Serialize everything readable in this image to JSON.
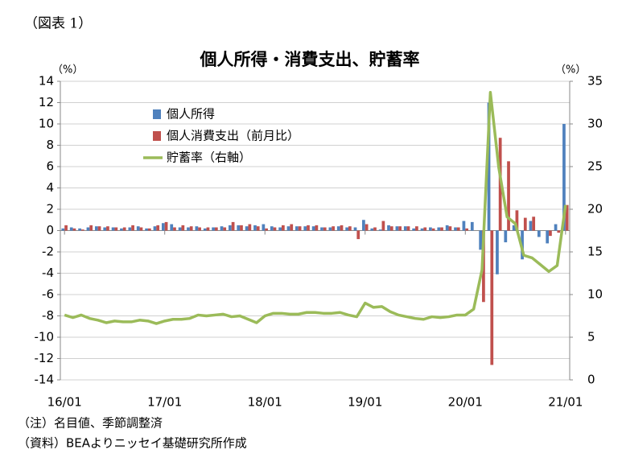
{
  "chart_data": {
    "type": "bar_line",
    "figure_label": "（図表 1）",
    "title": "個人所得・消費支出、貯蓄率",
    "y_unit": "（%）",
    "y2_unit": "（%）",
    "notes": [
      "（注）名目値、季節調整済",
      "（資料）BEAよりニッセイ基礎研究所作成"
    ],
    "categories": [
      "16/01",
      null,
      null,
      null,
      null,
      null,
      null,
      null,
      null,
      null,
      null,
      null,
      "17/01",
      null,
      null,
      null,
      null,
      null,
      null,
      null,
      null,
      null,
      null,
      null,
      "18/01",
      null,
      null,
      null,
      null,
      null,
      null,
      null,
      null,
      null,
      null,
      null,
      "19/01",
      null,
      null,
      null,
      null,
      null,
      null,
      null,
      null,
      null,
      null,
      null,
      "20/01",
      null,
      null,
      null,
      null,
      null,
      null,
      null,
      null,
      null,
      null,
      null,
      "21/01"
    ],
    "series": [
      {
        "name": "個人所得",
        "type": "bar",
        "color": "#4f81bd",
        "values": [
          0.2,
          0.3,
          0.2,
          0.3,
          0.4,
          0.3,
          0.3,
          0.2,
          0.3,
          0.4,
          0.2,
          0.4,
          0.7,
          0.6,
          0.3,
          0.3,
          0.4,
          0.2,
          0.3,
          0.4,
          0.5,
          0.5,
          0.4,
          0.5,
          0.6,
          0.4,
          0.3,
          0.4,
          0.4,
          0.4,
          0.4,
          0.3,
          0.3,
          0.4,
          0.3,
          0.3,
          1.0,
          0.2,
          0.1,
          0.5,
          0.4,
          0.4,
          0.2,
          0.2,
          0.3,
          0.3,
          0.5,
          0.3,
          0.9,
          0.8,
          -1.8,
          12.0,
          -4.1,
          -1.1,
          0.5,
          -2.7,
          0.9,
          -0.6,
          -1.2,
          0.6,
          10.0
        ]
      },
      {
        "name": "個人消費支出（前月比）",
        "type": "bar",
        "color": "#c0504d",
        "values": [
          0.5,
          0.2,
          0.1,
          0.5,
          0.4,
          0.4,
          0.3,
          0.3,
          0.5,
          0.3,
          0.2,
          0.5,
          0.8,
          0.3,
          0.5,
          0.4,
          0.3,
          0.3,
          0.3,
          0.3,
          0.8,
          0.5,
          0.6,
          0.4,
          0.2,
          0.3,
          0.5,
          0.6,
          0.4,
          0.5,
          0.5,
          0.3,
          0.4,
          0.5,
          0.4,
          -0.8,
          0.6,
          0.3,
          0.9,
          0.4,
          0.4,
          0.4,
          0.4,
          0.3,
          0.2,
          0.3,
          0.4,
          0.3,
          0.2,
          0.0,
          -6.7,
          -12.6,
          8.7,
          6.5,
          1.9,
          1.2,
          1.3,
          0.0,
          -0.5,
          -0.2,
          2.4
        ]
      },
      {
        "name": "貯蓄率（右軸）",
        "type": "line",
        "axis": "y2",
        "color": "#9bbb59",
        "values": [
          7.6,
          7.3,
          7.6,
          7.2,
          7.0,
          6.7,
          6.9,
          6.8,
          6.8,
          7.0,
          6.9,
          6.6,
          6.9,
          7.1,
          7.1,
          7.2,
          7.6,
          7.5,
          7.6,
          7.7,
          7.4,
          7.5,
          7.1,
          6.7,
          7.5,
          7.8,
          7.8,
          7.7,
          7.7,
          7.9,
          7.9,
          7.8,
          7.8,
          7.9,
          7.6,
          7.4,
          9.0,
          8.5,
          8.6,
          8.0,
          7.6,
          7.4,
          7.2,
          7.1,
          7.4,
          7.3,
          7.4,
          7.6,
          7.6,
          8.3,
          12.9,
          33.7,
          24.9,
          19.1,
          18.3,
          14.6,
          14.3,
          13.5,
          12.7,
          13.4,
          20.5
        ]
      }
    ],
    "ylim": [
      -14,
      14
    ],
    "yticks": [
      -14,
      -12,
      -10,
      -8,
      -6,
      -4,
      -2,
      0,
      2,
      4,
      6,
      8,
      10,
      12,
      14
    ],
    "y2lim": [
      0,
      35
    ],
    "y2ticks": [
      0,
      5,
      10,
      15,
      20,
      25,
      30,
      35
    ],
    "grid": true,
    "legend": "upper left"
  }
}
